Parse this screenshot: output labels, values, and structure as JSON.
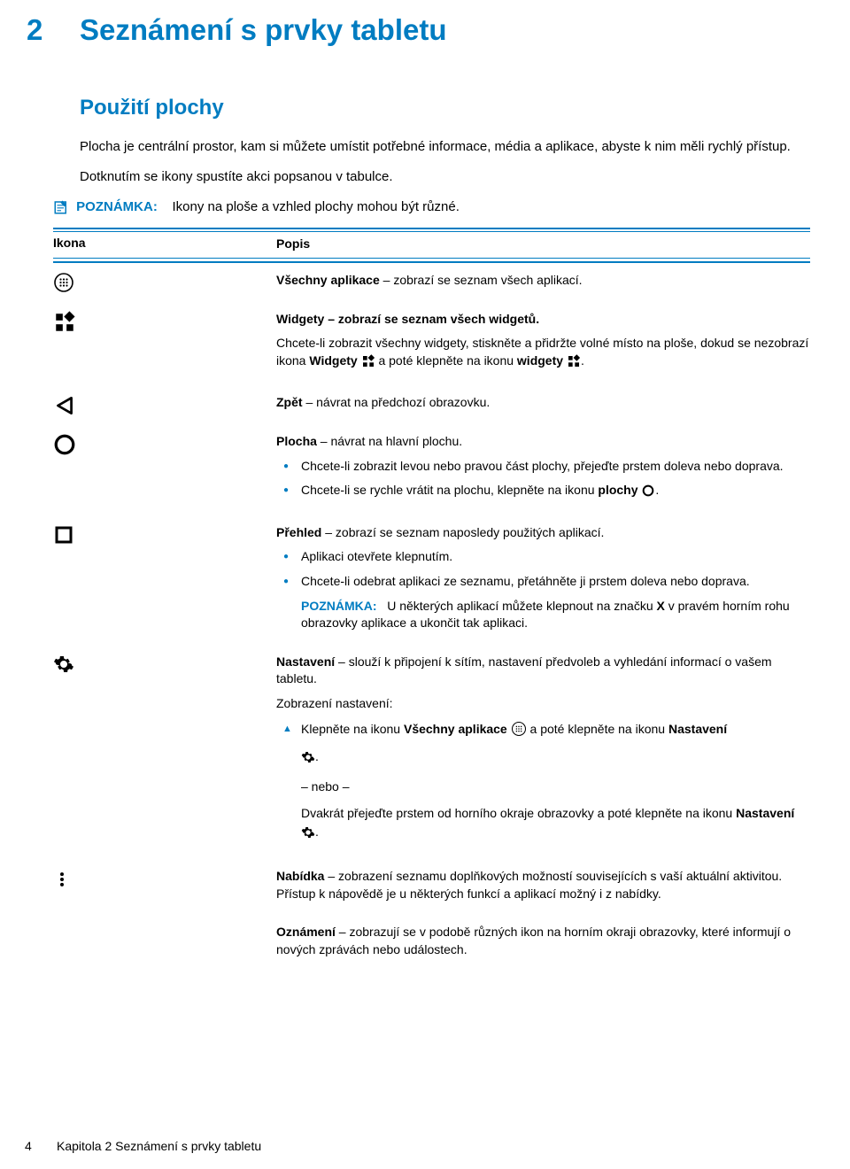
{
  "chapter": {
    "number": "2",
    "title": "Seznámení s prvky tabletu"
  },
  "section": {
    "title": "Použití plochy"
  },
  "intro": {
    "p1": "Plocha je centrální prostor, kam si můžete umístit potřebné informace, média a aplikace, abyste k nim měli rychlý přístup.",
    "p2": "Dotknutím se ikony spustíte akci popsanou v tabulce."
  },
  "note": {
    "label": "POZNÁMKA:",
    "text": "Ikony na ploše a vzhled plochy mohou být různé."
  },
  "table": {
    "head_icon": "Ikona",
    "head_desc": "Popis",
    "rows": {
      "all_apps": {
        "text": "Všechny aplikace – zobrazí se seznam všech aplikací."
      },
      "widgets": {
        "title": "Widgety – zobrazí se seznam všech widgetů.",
        "line_a": "Chcete-li zobrazit všechny widgety, stiskněte a přidržte volné místo na ploše, dokud se nezobrazí ikona ",
        "line_b_bold": "Widgety",
        "line_c": " a poté klepněte na ikonu ",
        "line_d_bold": "widgety",
        "line_e": "."
      },
      "back": {
        "text": "Zpět – návrat na předchozí obrazovku."
      },
      "home": {
        "title": "Plocha – návrat na hlavní plochu.",
        "bullet1": "Chcete-li zobrazit levou nebo pravou část plochy, přejeďte prstem doleva nebo doprava.",
        "bullet2_a": "Chcete-li se rychle vrátit na plochu, klepněte na ikonu ",
        "bullet2_b_bold": "plochy",
        "bullet2_c": "."
      },
      "recent": {
        "title": "Přehled – zobrazí se seznam naposledy použitých aplikací.",
        "bullet1": "Aplikaci otevřete klepnutím.",
        "bullet2": "Chcete-li odebrat aplikaci ze seznamu, přetáhněte ji prstem doleva nebo doprava.",
        "note_label": "POZNÁMKA:",
        "note_text_a": "U některých aplikací můžete klepnout na značku ",
        "note_text_b_bold": "X",
        "note_text_c": " v pravém horním rohu obrazovky aplikace a ukončit tak aplikaci."
      },
      "settings": {
        "title": "Nastavení – slouží k připojení k sítím, nastavení předvoleb a vyhledání informací o vašem tabletu.",
        "sub1": "Zobrazení nastavení:",
        "tri_a": "Klepněte na ikonu ",
        "tri_b_bold": "Všechny aplikace",
        "tri_c": " a poté klepněte na ikonu ",
        "tri_d_bold": "Nastavení",
        "or": "– nebo –",
        "alt_a": "Dvakrát přejeďte prstem od horního okraje obrazovky a poté klepněte na ikonu ",
        "alt_b_bold": "Nastavení",
        "alt_c": "."
      },
      "menu": {
        "text": "Nabídka – zobrazení seznamu doplňkových možností souvisejících s vaší aktuální aktivitou. Přístup k nápovědě je u některých funkcí a aplikací možný i z nabídky."
      },
      "notif": {
        "text": "Oznámení – zobrazují se v podobě různých ikon na horním okraji obrazovky, které informují o nových zprávách nebo událostech."
      }
    }
  },
  "footer": {
    "page": "4",
    "chapter_label": "Kapitola 2   Seznámení s prvky tabletu"
  },
  "colors": {
    "brand": "#007cc1",
    "text": "#000000",
    "background": "#ffffff"
  },
  "icons": {
    "note": "note-icon",
    "all_apps": "apps-circle-icon",
    "widgets": "widgets-icon",
    "back": "back-triangle-icon",
    "home": "home-circle-icon",
    "recent": "recent-square-icon",
    "settings": "gear-icon",
    "menu": "menu-vert-icon"
  }
}
